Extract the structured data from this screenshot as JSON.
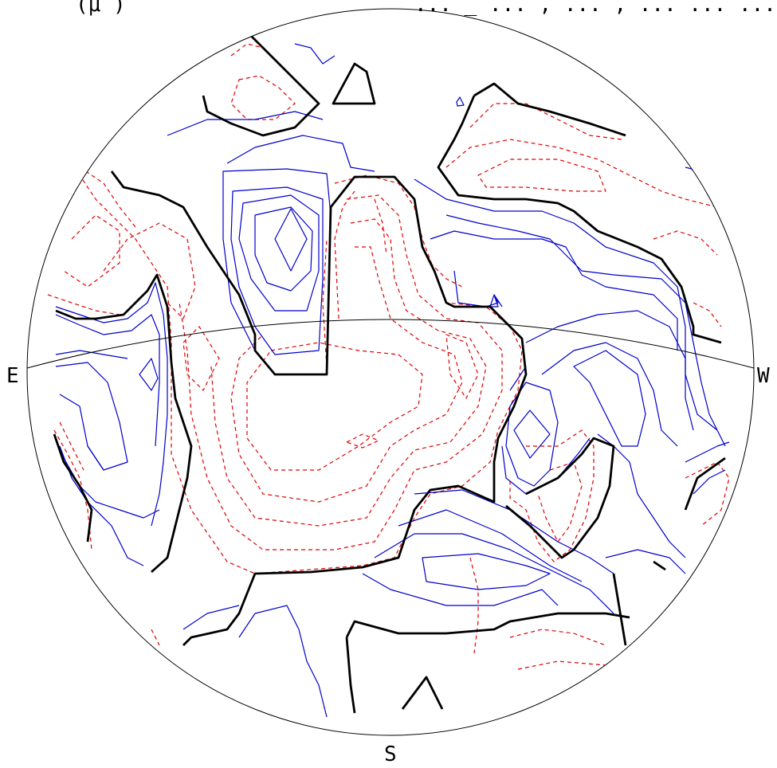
{
  "header": {
    "left_text": "(μ )",
    "right_text": "... _ ... , ... , ... ... ..."
  },
  "compass": {
    "east": "E",
    "west": "W",
    "south": "S"
  },
  "colors": {
    "positive_contour": "#0000cc",
    "negative_contour": "#e00000",
    "zero_contour": "#000000",
    "outline": "#000000",
    "background": "#ffffff"
  }
}
